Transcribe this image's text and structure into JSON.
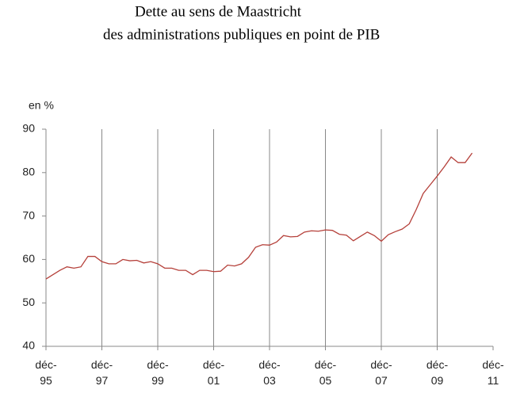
{
  "chart_data": {
    "type": "line",
    "title": "Dette au sens de Maastricht",
    "subtitle": "des administrations publiques en point de PIB",
    "y_label": "en %",
    "categories": [
      "déc-\n95",
      null,
      null,
      null,
      null,
      null,
      null,
      null,
      "déc-\n97",
      null,
      null,
      null,
      null,
      null,
      null,
      null,
      "déc-\n99",
      null,
      null,
      null,
      null,
      null,
      null,
      null,
      "déc-\n01",
      null,
      null,
      null,
      null,
      null,
      null,
      null,
      "déc-\n03",
      null,
      null,
      null,
      null,
      null,
      null,
      null,
      "déc-\n05",
      null,
      null,
      null,
      null,
      null,
      null,
      null,
      "déc-\n07",
      null,
      null,
      null,
      null,
      null,
      null,
      null,
      "déc-\n09",
      null,
      null,
      null,
      null,
      null,
      null,
      null,
      "déc-\n11"
    ],
    "series": [
      {
        "name": "Dette",
        "color": "#b5403a",
        "values": [
          55.5,
          56.5,
          57.5,
          58.3,
          58.0,
          58.3,
          60.7,
          60.7,
          59.5,
          59.0,
          59.0,
          60.0,
          59.7,
          59.8,
          59.2,
          59.5,
          59.0,
          58.0,
          58.0,
          57.5,
          57.5,
          56.5,
          57.5,
          57.5,
          57.2,
          57.3,
          58.7,
          58.5,
          59.0,
          60.5,
          62.8,
          63.4,
          63.3,
          64.0,
          65.5,
          65.2,
          65.3,
          66.3,
          66.6,
          66.5,
          66.8,
          66.7,
          65.8,
          65.6,
          64.3,
          65.3,
          66.3,
          65.5,
          64.2,
          65.7,
          66.4,
          67.0,
          68.2,
          71.5,
          75.2,
          77.2,
          79.2,
          81.3,
          83.6,
          82.3,
          82.3,
          84.5,
          null,
          null,
          null
        ]
      }
    ],
    "ylim": [
      40,
      90
    ],
    "yticks": [
      40,
      50,
      60,
      70,
      80,
      90
    ],
    "grid": true
  }
}
